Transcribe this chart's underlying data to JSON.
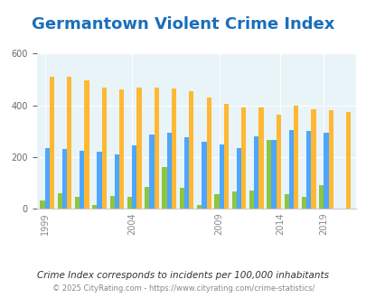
{
  "title": "Germantown Violent Crime Index",
  "years": [
    1999,
    2000,
    2001,
    2002,
    2003,
    2004,
    2005,
    2006,
    2007,
    2008,
    2009,
    2010,
    2011,
    2012,
    2013,
    2016,
    2018,
    2019,
    2020
  ],
  "germantown": [
    30,
    60,
    45,
    15,
    50,
    45,
    85,
    160,
    80,
    15,
    55,
    65,
    70,
    265,
    0,
    55,
    45,
    90,
    0
  ],
  "wisconsin": [
    235,
    230,
    225,
    220,
    210,
    245,
    285,
    295,
    275,
    260,
    250,
    235,
    280,
    265,
    0,
    305,
    300,
    295,
    0
  ],
  "national": [
    510,
    510,
    495,
    470,
    460,
    470,
    470,
    465,
    455,
    430,
    405,
    390,
    390,
    365,
    0,
    400,
    385,
    380,
    375
  ],
  "bar_width": 0.27,
  "ylim": [
    0,
    600
  ],
  "yticks": [
    0,
    200,
    400,
    600
  ],
  "bg_color": "#e8f4f8",
  "germantown_color": "#8dc63f",
  "wisconsin_color": "#4da6ff",
  "national_color": "#ffb833",
  "title_color": "#1a6fba",
  "title_fontsize": 13,
  "subtitle": "Crime Index corresponds to incidents per 100,000 inhabitants",
  "footer": "© 2025 CityRating.com - https://www.cityrating.com/crime-statistics/",
  "xlabel_years": [
    1999,
    2004,
    2009,
    2014,
    2019
  ]
}
